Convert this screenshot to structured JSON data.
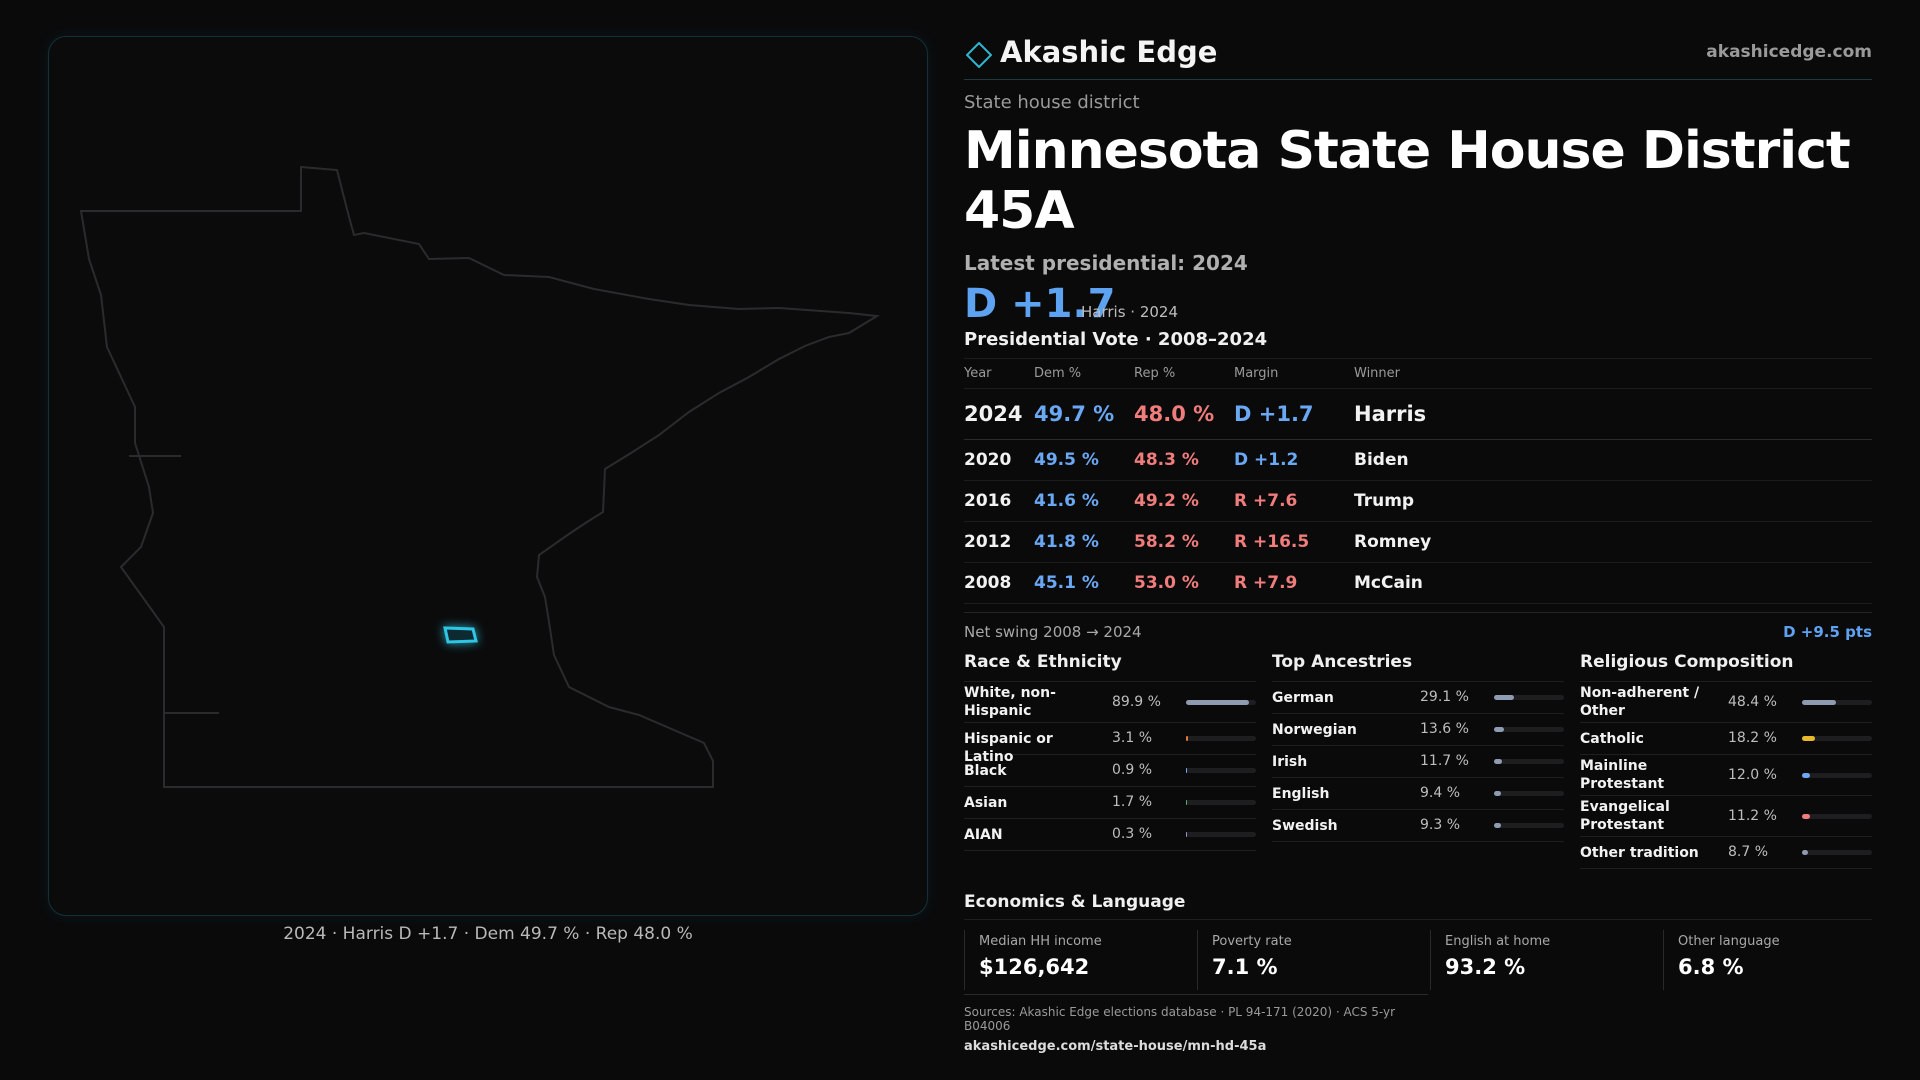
{
  "map": {
    "caption": "2024 · Harris D +1.7 · Dem 49.7 % · Rep 48.0 %",
    "highlight_color": "#2fc6e4",
    "outline_color": "#2b2b2e"
  },
  "brand": {
    "name": "Akashic Edge",
    "url": "akashicedge.com",
    "logo_icon": "diamond-outline"
  },
  "district": {
    "kind": "State house district",
    "title": "Minnesota State House District 45A",
    "latest_label": "Latest presidential: 2024",
    "margin": "D +1.7",
    "margin_sub": "Harris · 2024"
  },
  "presidential": {
    "title": "Presidential Vote · 2008–2024",
    "headers": {
      "year": "Year",
      "dem": "Dem %",
      "rep": "Rep %",
      "margin": "Margin",
      "winner": "Winner"
    },
    "rows": [
      {
        "year": "2024",
        "dem": "49.7 %",
        "rep": "48.0 %",
        "margin": "D +1.7",
        "party": "D",
        "winner": "Harris"
      },
      {
        "year": "2020",
        "dem": "49.5 %",
        "rep": "48.3 %",
        "margin": "D +1.2",
        "party": "D",
        "winner": "Biden"
      },
      {
        "year": "2016",
        "dem": "41.6 %",
        "rep": "49.2 %",
        "margin": "R +7.6",
        "party": "R",
        "winner": "Trump"
      },
      {
        "year": "2012",
        "dem": "41.8 %",
        "rep": "58.2 %",
        "margin": "R +16.5",
        "party": "R",
        "winner": "Romney"
      },
      {
        "year": "2008",
        "dem": "45.1 %",
        "rep": "53.0 %",
        "margin": "R +7.9",
        "party": "R",
        "winner": "McCain"
      }
    ],
    "swing_label": "Net swing 2008 → 2024",
    "swing_value": "D +9.5 pts"
  },
  "demographics": {
    "race": {
      "title": "Race & Ethnicity",
      "items": [
        {
          "label": "White, non-Hispanic",
          "value": "89.9 %",
          "pct": 89.9,
          "color": "#8e9bb0"
        },
        {
          "label": "Hispanic or Latino",
          "value": "3.1 %",
          "pct": 3.1,
          "color": "#e07a3a"
        },
        {
          "label": "Black",
          "value": "0.9 %",
          "pct": 0.9,
          "color": "#6aa8f4"
        },
        {
          "label": "Asian",
          "value": "1.7 %",
          "pct": 1.7,
          "color": "#4fb07a"
        },
        {
          "label": "AIAN",
          "value": "0.3 %",
          "pct": 0.3,
          "color": "#9a8fd0"
        }
      ]
    },
    "ancestry": {
      "title": "Top Ancestries",
      "items": [
        {
          "label": "German",
          "value": "29.1 %",
          "pct": 29.1,
          "color": "#8e9bb0"
        },
        {
          "label": "Norwegian",
          "value": "13.6 %",
          "pct": 13.6,
          "color": "#8e9bb0"
        },
        {
          "label": "Irish",
          "value": "11.7 %",
          "pct": 11.7,
          "color": "#8e9bb0"
        },
        {
          "label": "English",
          "value": "9.4 %",
          "pct": 9.4,
          "color": "#8e9bb0"
        },
        {
          "label": "Swedish",
          "value": "9.3 %",
          "pct": 9.3,
          "color": "#8e9bb0"
        }
      ]
    },
    "religion": {
      "title": "Religious Composition",
      "items": [
        {
          "label": "Non-adherent / Other",
          "value": "48.4 %",
          "pct": 48.4,
          "color": "#8e9bb0"
        },
        {
          "label": "Catholic",
          "value": "18.2 %",
          "pct": 18.2,
          "color": "#e8b928"
        },
        {
          "label": "Mainline Protestant",
          "value": "12.0 %",
          "pct": 12.0,
          "color": "#6aa8f4"
        },
        {
          "label": "Evangelical Protestant",
          "value": "11.2 %",
          "pct": 11.2,
          "color": "#f07c7c"
        },
        {
          "label": "Other tradition",
          "value": "8.7 %",
          "pct": 8.7,
          "color": "#8e9bb0"
        }
      ]
    }
  },
  "economics": {
    "title": "Economics & Language",
    "items": [
      {
        "label": "Median HH income",
        "value": "$126,642"
      },
      {
        "label": "Poverty rate",
        "value": "7.1 %"
      },
      {
        "label": "English at home",
        "value": "93.2 %"
      },
      {
        "label": "Other language",
        "value": "6.8 %"
      }
    ]
  },
  "sources": {
    "line": "Sources: Akashic Edge elections database · PL 94-171 (2020) · ACS 5-yr B04006",
    "url": "akashicedge.com/state-house/mn-hd-45a"
  }
}
